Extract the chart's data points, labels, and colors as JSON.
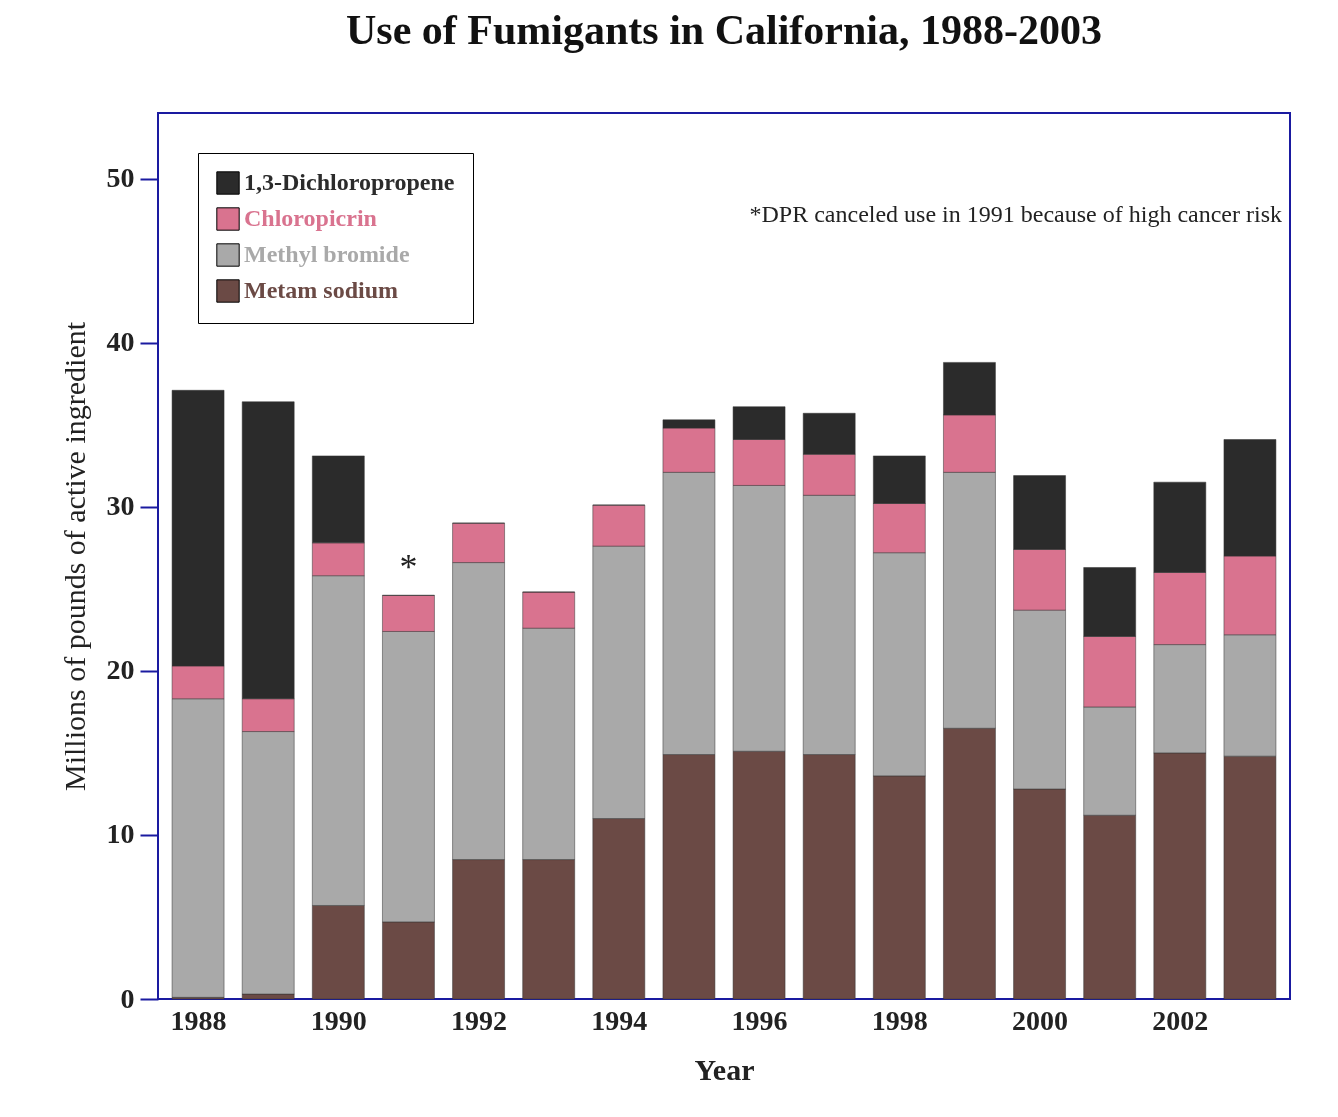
{
  "chart_data": {
    "type": "bar",
    "title": "Use of Fumigants in California, 1988-2003",
    "xlabel": "Year",
    "ylabel": "Millions of pounds of active ingredient",
    "x": [
      1988,
      1989,
      1990,
      1991,
      1992,
      1993,
      1994,
      1995,
      1996,
      1997,
      1998,
      1999,
      2000,
      2001,
      2002,
      2003
    ],
    "stacked": true,
    "series": [
      {
        "name": "Metam sodium",
        "color": "#6b4a45",
        "values": [
          0.1,
          0.3,
          5.7,
          4.7,
          8.5,
          8.5,
          11.0,
          14.9,
          15.1,
          14.9,
          13.6,
          16.5,
          12.8,
          11.2,
          15.0,
          14.8
        ]
      },
      {
        "name": "Methyl bromide",
        "color": "#a9a9a9",
        "values": [
          18.2,
          16.0,
          20.1,
          17.7,
          18.1,
          14.1,
          16.6,
          17.2,
          16.2,
          15.8,
          13.6,
          15.6,
          10.9,
          6.6,
          6.6,
          7.4
        ]
      },
      {
        "name": "Chloropicrin",
        "color": "#d9738f",
        "values": [
          2.0,
          2.0,
          2.0,
          2.2,
          2.4,
          2.2,
          2.5,
          2.7,
          2.8,
          2.5,
          3.0,
          3.5,
          3.7,
          4.3,
          4.4,
          4.8
        ]
      },
      {
        "name": "1,3-Dichloropropene",
        "color": "#2b2b2b",
        "values": [
          16.8,
          18.1,
          5.3,
          0,
          0,
          0,
          0,
          0.5,
          2.0,
          2.5,
          2.9,
          3.2,
          4.5,
          4.2,
          5.5,
          7.1
        ]
      }
    ],
    "xlim": [
      1987.5,
      2003.5
    ],
    "xticks": [
      1988,
      1990,
      1992,
      1994,
      1996,
      1998,
      2000,
      2002
    ],
    "ylim": [
      0,
      54
    ],
    "yticks": [
      0,
      10,
      20,
      30,
      40,
      50
    ],
    "legend": "top left",
    "annotations": [
      {
        "text": "*",
        "x": 1991,
        "y": 24.6
      },
      "*DPR canceled use in 1991 because of high cancer risk"
    ]
  }
}
